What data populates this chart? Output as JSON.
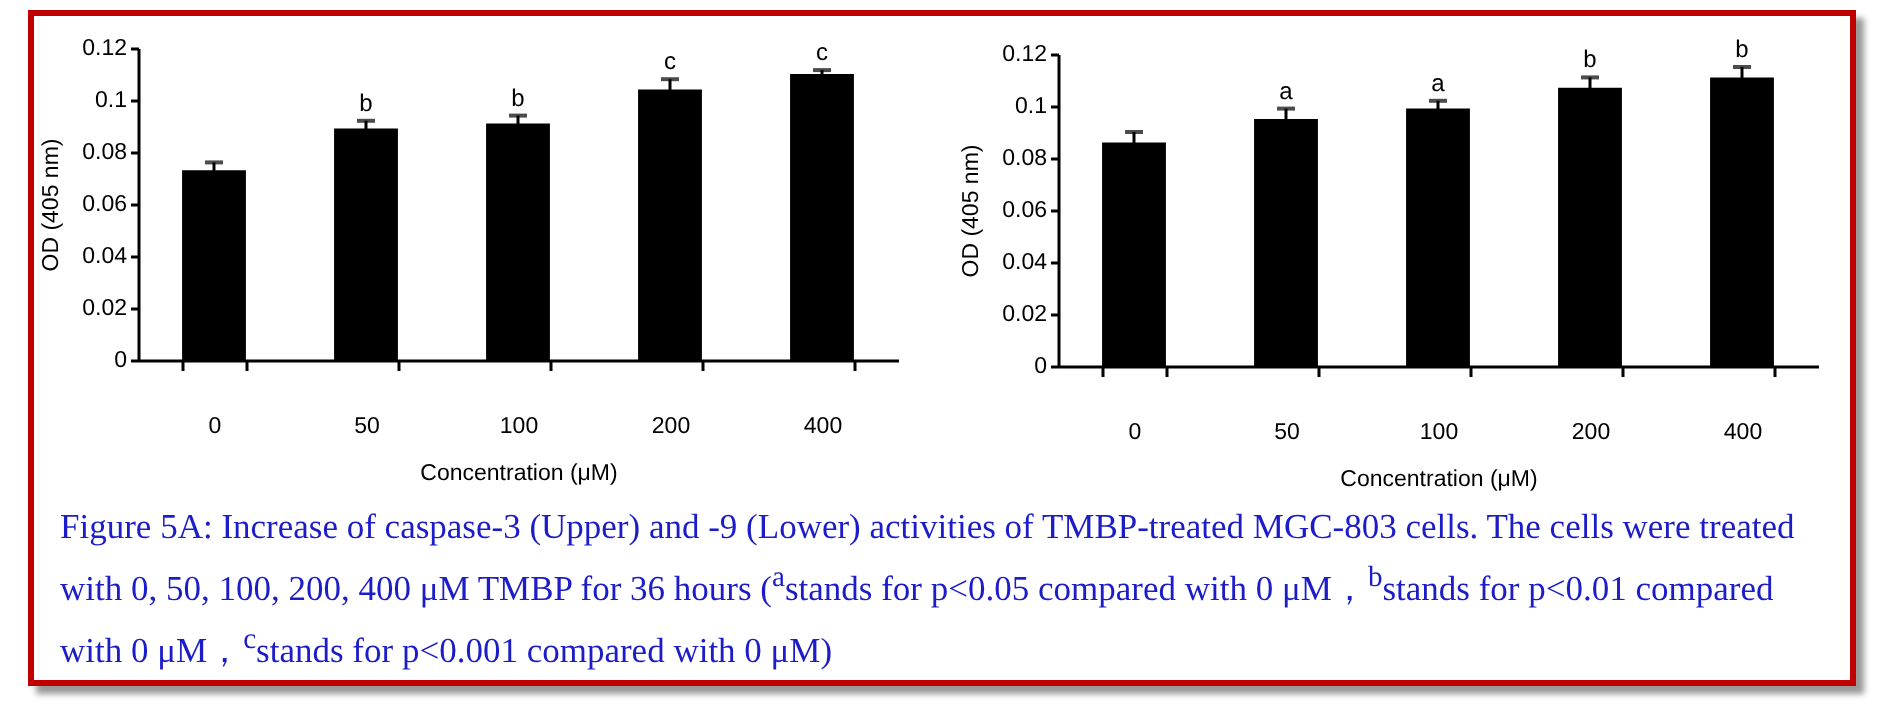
{
  "chart_data": [
    {
      "type": "bar",
      "xlabel": "Concentration (μM)",
      "ylabel": "OD (405 nm)",
      "categories": [
        "0",
        "50",
        "100",
        "200",
        "400"
      ],
      "values": [
        0.073,
        0.089,
        0.091,
        0.104,
        0.11
      ],
      "errors": [
        0.003,
        0.003,
        0.003,
        0.004,
        0.0015
      ],
      "color": "#000000",
      "ylim": [
        0,
        0.12
      ],
      "yticks": [
        0,
        0.02,
        0.04,
        0.06,
        0.08,
        0.1,
        0.12
      ],
      "grid": false,
      "annotations": [
        {
          "text": "b",
          "x": "50",
          "y": 0.092
        },
        {
          "text": "b",
          "x": "100",
          "y": 0.094
        },
        {
          "text": "c",
          "x": "200",
          "y": 0.108
        },
        {
          "text": "c",
          "x": "400",
          "y": 0.1115
        }
      ]
    },
    {
      "type": "bar",
      "xlabel": "Concentration (μM)",
      "ylabel": "OD (405 nm)",
      "categories": [
        "0",
        "50",
        "100",
        "200",
        "400"
      ],
      "values": [
        0.086,
        0.095,
        0.099,
        0.107,
        0.111
      ],
      "errors": [
        0.004,
        0.004,
        0.003,
        0.004,
        0.004
      ],
      "color": "#000000",
      "ylim": [
        0,
        0.12
      ],
      "yticks": [
        0,
        0.02,
        0.04,
        0.06,
        0.08,
        0.1,
        0.12
      ],
      "grid": false,
      "annotations": [
        {
          "text": "a",
          "x": "50",
          "y": 0.099
        },
        {
          "text": "a",
          "x": "100",
          "y": 0.102
        },
        {
          "text": "b",
          "x": "200",
          "y": 0.111
        },
        {
          "text": "b",
          "x": "400",
          "y": 0.115
        }
      ]
    },
    {
      "type": "other",
      "annotations": [
        "Figure 5A: Increase of caspase-3 (Upper) and -9 (Lower) activities of TMBP-treated MGC-803 cells. The cells were treated with 0, 50, 100, 200, 400 μM TMBP for 36 hours ($^{a}$stands for p<0.05 compared with 0 μM，$^{b}$stands for p<0.01 compared with 0 μM，$^{c}$stands for p<0.001 compared with 0 μM)"
      ]
    }
  ]
}
